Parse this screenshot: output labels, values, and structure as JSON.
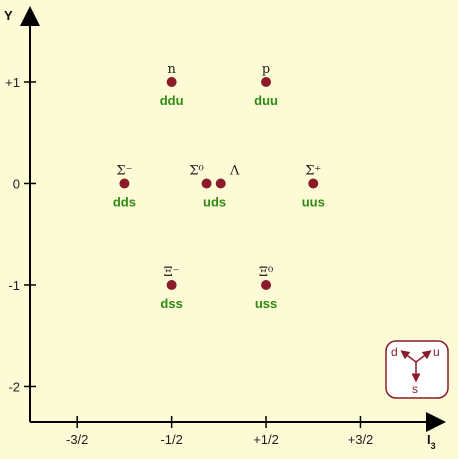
{
  "chart_data": {
    "type": "scatter",
    "xlabel": "I",
    "xlabel_sub": "3",
    "ylabel": "Y",
    "xlim": [
      -2,
      2.3
    ],
    "ylim": [
      -2.35,
      1.65
    ],
    "xticks": [
      {
        "value": -1.5,
        "label": "-3/2"
      },
      {
        "value": -0.5,
        "label": "-1/2"
      },
      {
        "value": 0.5,
        "label": "+1/2"
      },
      {
        "value": 1.5,
        "label": "+3/2"
      }
    ],
    "yticks": [
      {
        "value": 1,
        "label": "+1"
      },
      {
        "value": 0,
        "label": "0"
      },
      {
        "value": -1,
        "label": "-1"
      },
      {
        "value": -2,
        "label": "-2"
      }
    ],
    "grid": false,
    "point_color": "#8b1a2b",
    "quark_color": "#2e8b12",
    "points": [
      {
        "name": "n",
        "quarks": "ddu",
        "x": -0.5,
        "y": 1,
        "name_dx": 0,
        "quarks_dx": 0
      },
      {
        "name": "p",
        "quarks": "duu",
        "x": 0.5,
        "y": 1,
        "name_dx": 0,
        "quarks_dx": 0
      },
      {
        "name": "Σ⁻",
        "quarks": "dds",
        "x": -1,
        "y": 0,
        "name_dx": 0,
        "quarks_dx": 0
      },
      {
        "name": "Σ⁰",
        "quarks": "uds",
        "x": -0.13,
        "y": 0,
        "name_dx": 0,
        "quarks_dx": 1
      },
      {
        "name": "Λ",
        "quarks": "",
        "x": 0.02,
        "y": 0,
        "name_dx": 1,
        "quarks_dx": 0
      },
      {
        "name": "Σ⁺",
        "quarks": "uus",
        "x": 1,
        "y": 0,
        "name_dx": 0,
        "quarks_dx": 0
      },
      {
        "name": "Ξ⁻",
        "quarks": "dss",
        "x": -0.5,
        "y": -1,
        "name_dx": 0,
        "quarks_dx": 0
      },
      {
        "name": "Ξ⁰",
        "quarks": "uss",
        "x": 0.5,
        "y": -1,
        "name_dx": 0,
        "quarks_dx": 0
      }
    ]
  },
  "legend": {
    "labels": {
      "d": "d",
      "u": "u",
      "s": "s"
    },
    "color": "#8b1a2b"
  }
}
